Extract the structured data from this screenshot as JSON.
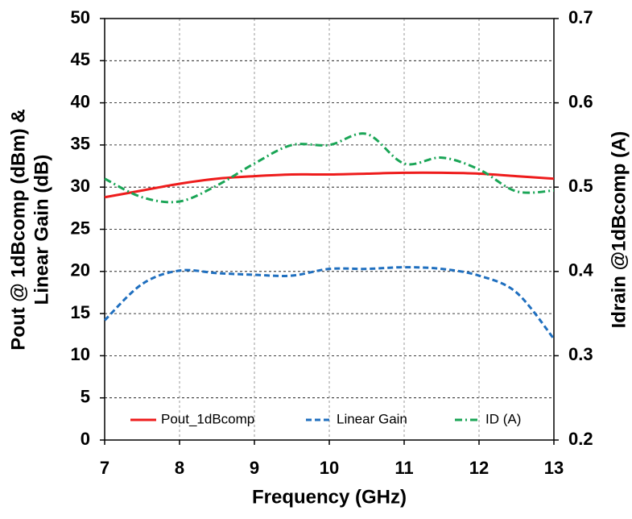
{
  "chart_data": {
    "type": "line",
    "xlabel": "Frequency (GHz)",
    "ylabel": [
      "Pout @ 1dBcomp (dBm) &",
      "Linear Gain (dB)"
    ],
    "y2label": "Idrain @1dBcomp (A)",
    "x": [
      7,
      7.5,
      8,
      8.5,
      9,
      9.5,
      10,
      10.5,
      11,
      11.5,
      12,
      12.5,
      13
    ],
    "xlim": [
      7,
      13
    ],
    "xticks": [
      7,
      8,
      9,
      10,
      11,
      12,
      13
    ],
    "ylim": [
      0,
      50
    ],
    "yticks": [
      0,
      5,
      10,
      15,
      20,
      25,
      30,
      35,
      40,
      45,
      50
    ],
    "y2lim": [
      0.2,
      0.7
    ],
    "y2ticks": [
      0.2,
      0.3,
      0.4,
      0.5,
      0.6,
      0.7
    ],
    "grid": true,
    "legend": "bottom",
    "series": [
      {
        "name": "Pout_1dBcomp",
        "color": "#ee1c1c",
        "dash": "solid",
        "values": [
          28.8,
          29.6,
          30.4,
          31.0,
          31.3,
          31.5,
          31.5,
          31.6,
          31.7,
          31.7,
          31.6,
          31.3,
          31.0
        ]
      },
      {
        "name": "Linear Gain",
        "color": "#1f6fbf",
        "dash": "dash",
        "values": [
          14.2,
          18.5,
          20.1,
          19.8,
          19.6,
          19.5,
          20.3,
          20.3,
          20.5,
          20.3,
          19.5,
          17.5,
          12.0
        ]
      },
      {
        "name": "ID (A)",
        "color": "#1aa556",
        "dash": "dashdot",
        "axis": "y2",
        "values": [
          0.51,
          0.488,
          0.483,
          0.502,
          0.528,
          0.55,
          0.55,
          0.563,
          0.528,
          0.535,
          0.521,
          0.495,
          0.496
        ]
      }
    ]
  }
}
